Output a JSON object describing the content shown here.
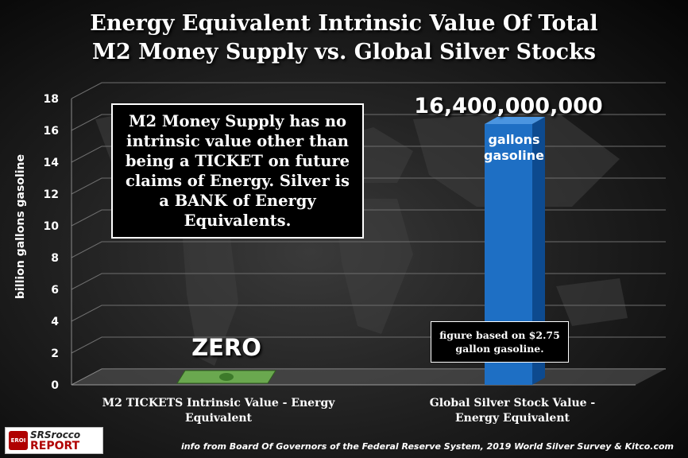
{
  "title": {
    "line1": "Energy Equivalent Intrinsic Value Of Total",
    "line2": "M2 Money Supply vs. Global Silver Stocks"
  },
  "callout": "M2 Money Supply has no intrinsic value other than being a TICKET on future claims of Energy. Silver is a BANK of Energy Equivalents.",
  "annotations": {
    "big_value": "16,400,000,000",
    "bar_label": "gallons gasoline",
    "note": "figure based on $2.75 gallon gasoline.",
    "zero": "ZERO"
  },
  "source": "info from Board Of Governors of the Federal Reserve System, 2019 World Silver Survey & Kitco.com",
  "logo": {
    "badge": "EROI",
    "line1": "SRSrocco",
    "line2": "REPORT"
  },
  "colors": {
    "bar": "#1e6fc4",
    "bar_dark": "#0d4a8f",
    "money": "#6aa84f"
  },
  "chart_data": {
    "type": "bar",
    "title": "Energy Equivalent Intrinsic Value Of Total M2 Money Supply vs. Global Silver Stocks",
    "ylabel": "billion gallons  gasoline",
    "xlabel": "",
    "ylim": [
      0,
      18
    ],
    "yticks": [
      0,
      2,
      4,
      6,
      8,
      10,
      12,
      14,
      16,
      18
    ],
    "categories": [
      "M2  TICKETS  Intrinsic Value - Energy Equivalent",
      "Global Silver Stock Value - Energy Equivalent"
    ],
    "values": [
      0,
      16.4
    ],
    "grid": true
  }
}
